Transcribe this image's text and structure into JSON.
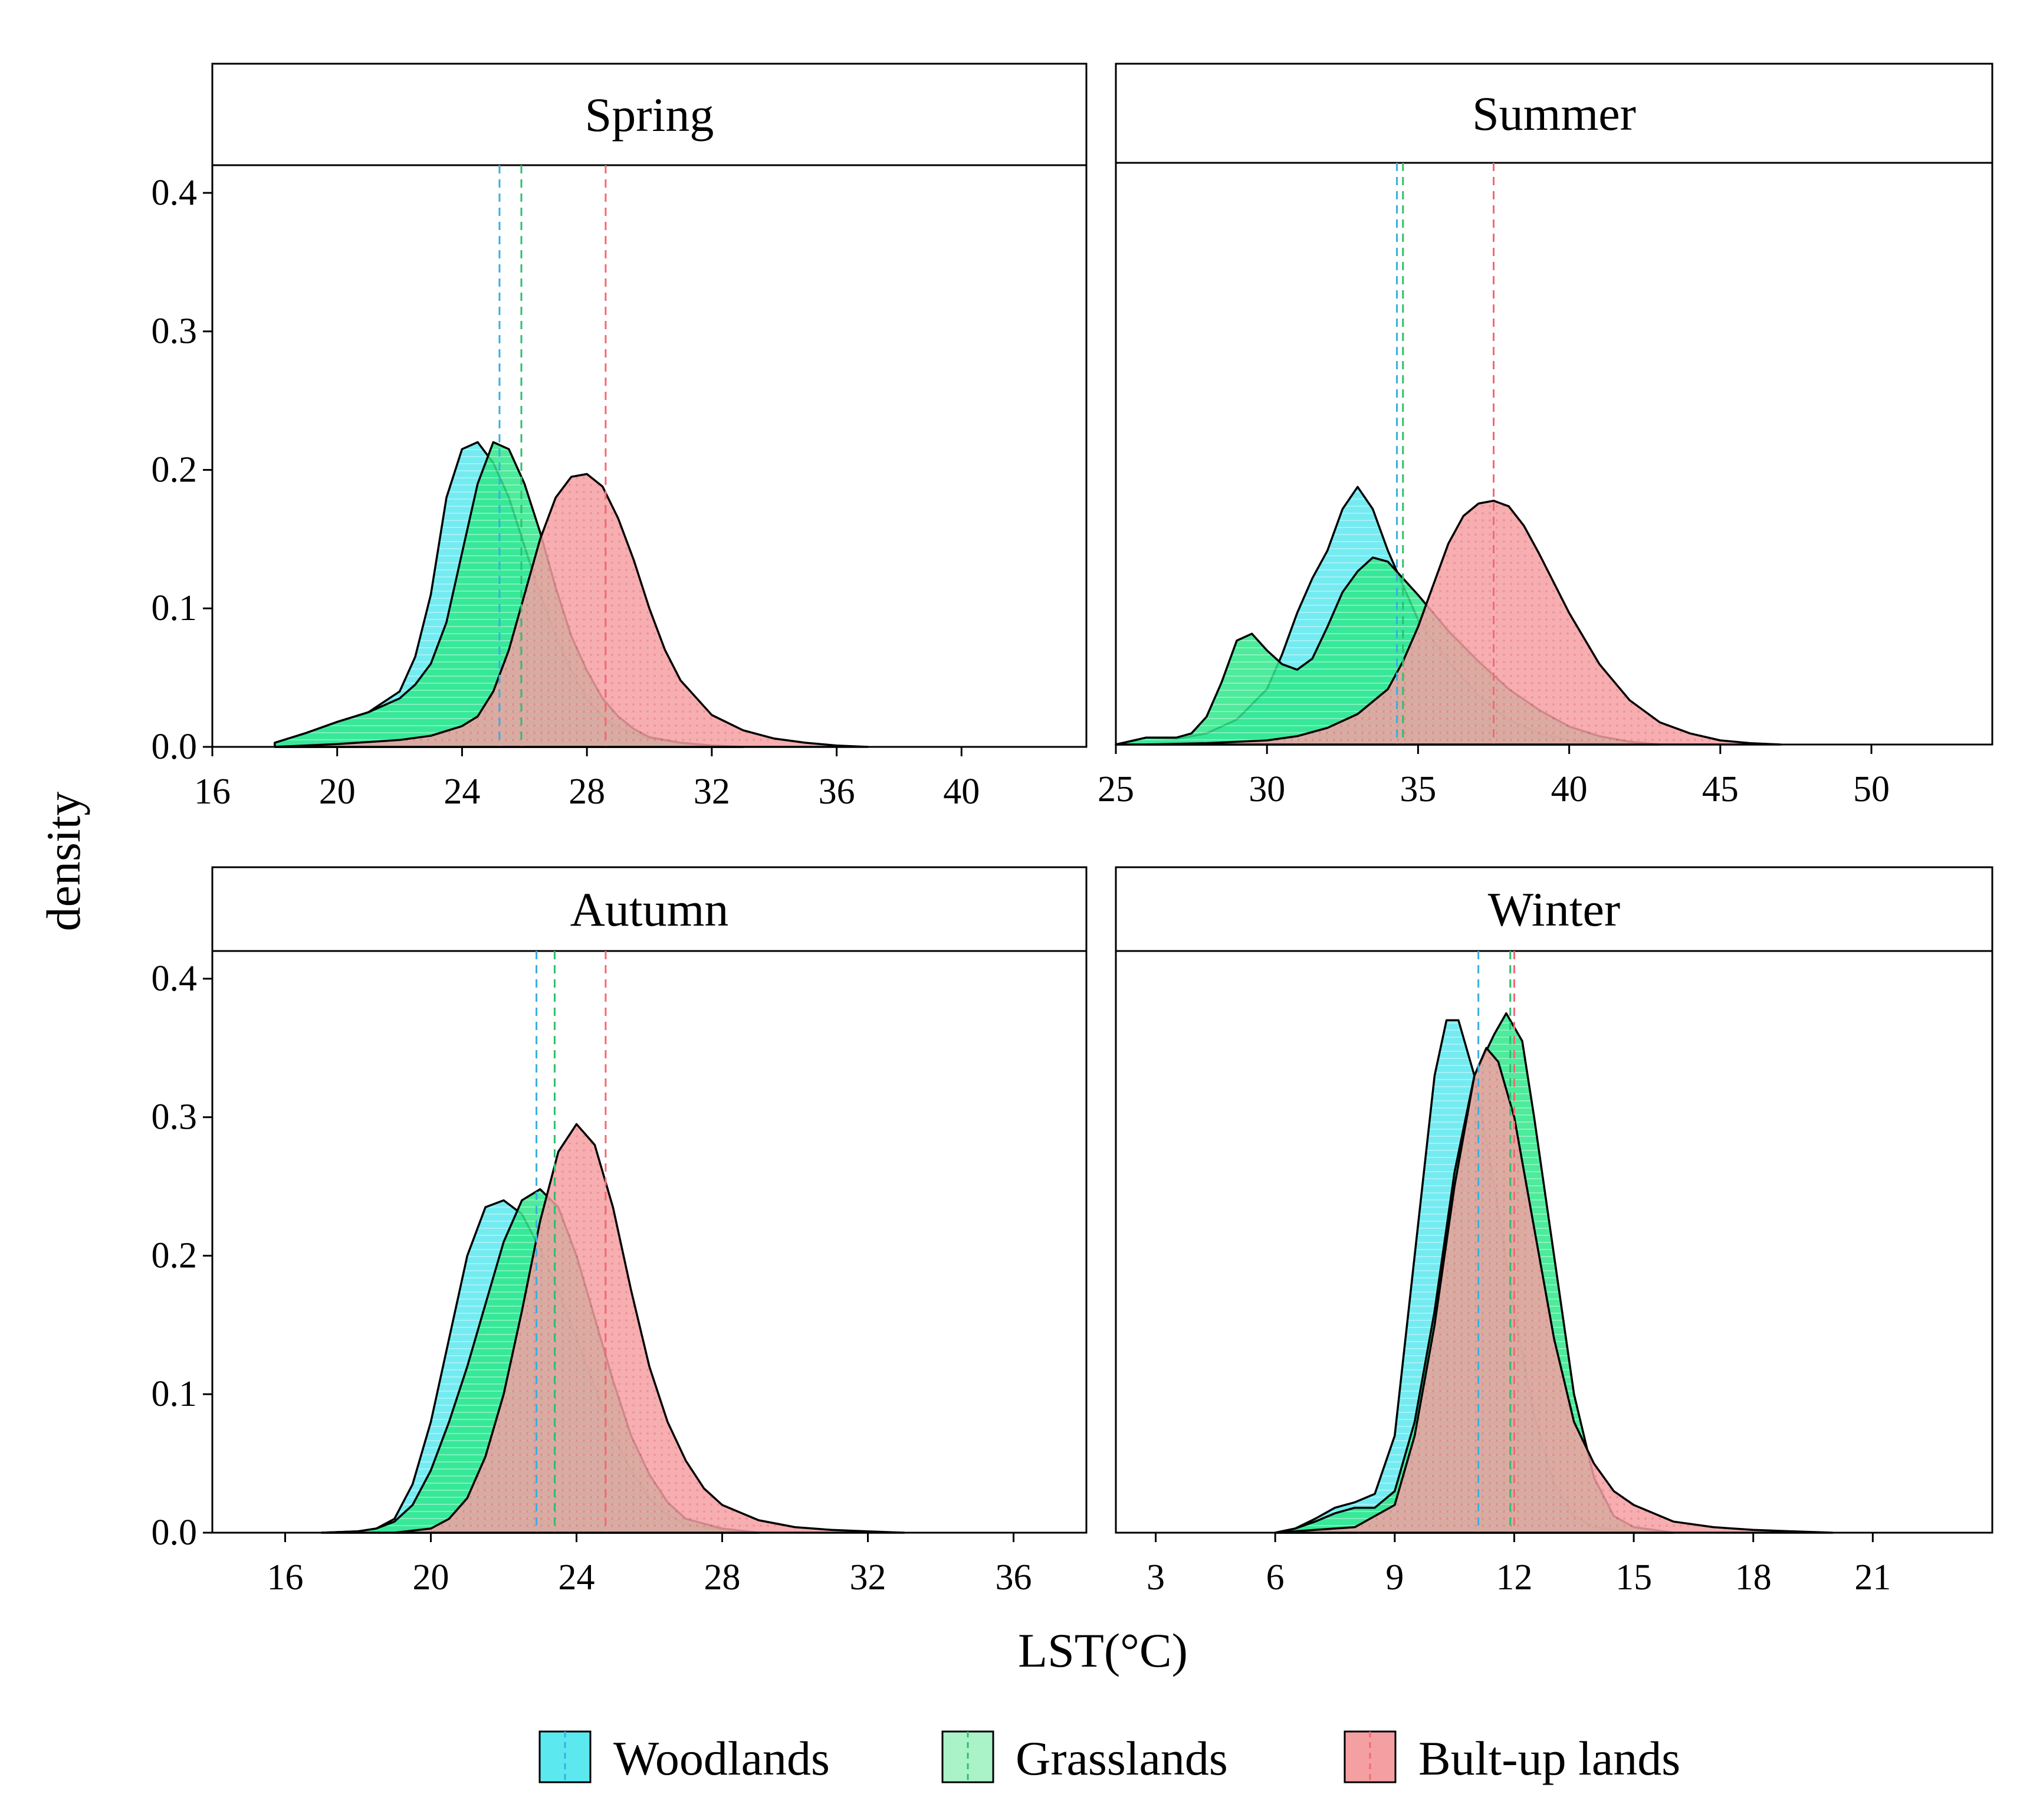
{
  "figure": {
    "ylabel": "density",
    "xlabel": "LST(°C)"
  },
  "legend": {
    "items": [
      {
        "label": "Woodlands",
        "color": "#5ce8ef"
      },
      {
        "label": "Grasslands",
        "color": "#2ee88a"
      },
      {
        "label": "Bult-up lands",
        "color": "#f4a0a3"
      }
    ]
  },
  "chart_data": [
    {
      "type": "density",
      "title": "Spring",
      "xlim": [
        16,
        44
      ],
      "ylim": [
        0,
        0.42
      ],
      "xticks": [
        16,
        20,
        24,
        28,
        32,
        36,
        40
      ],
      "yticks": [
        0.0,
        0.1,
        0.2,
        0.3,
        0.4
      ],
      "ytick_labels": [
        "0.0",
        "0.1",
        "0.2",
        "0.3",
        "0.4"
      ],
      "series": [
        {
          "name": "Woodlands",
          "mean": 25.2,
          "x": [
            18,
            19,
            20,
            21,
            22,
            22.5,
            23,
            23.5,
            24,
            24.5,
            25,
            25.5,
            26,
            26.5,
            27,
            27.5,
            28,
            28.5,
            29,
            30,
            31,
            32,
            33
          ],
          "y": [
            0.003,
            0.01,
            0.018,
            0.025,
            0.04,
            0.065,
            0.11,
            0.18,
            0.215,
            0.22,
            0.205,
            0.18,
            0.145,
            0.11,
            0.08,
            0.055,
            0.035,
            0.022,
            0.014,
            0.006,
            0.003,
            0.001,
            0
          ]
        },
        {
          "name": "Grasslands",
          "mean": 25.9,
          "x": [
            18,
            19,
            20,
            21,
            22,
            22.5,
            23,
            23.5,
            24,
            24.5,
            25,
            25.5,
            26,
            26.5,
            27,
            27.5,
            28,
            28.5,
            29,
            29.5,
            30,
            31,
            32,
            33
          ],
          "y": [
            0.003,
            0.01,
            0.018,
            0.025,
            0.035,
            0.045,
            0.06,
            0.09,
            0.14,
            0.19,
            0.22,
            0.215,
            0.19,
            0.155,
            0.115,
            0.08,
            0.055,
            0.035,
            0.022,
            0.013,
            0.007,
            0.003,
            0.001,
            0
          ]
        },
        {
          "name": "Bult-up lands",
          "mean": 28.6,
          "x": [
            18,
            20,
            22,
            23,
            24,
            24.5,
            25,
            25.5,
            26,
            26.5,
            27,
            27.5,
            28,
            28.5,
            29,
            29.5,
            30,
            30.5,
            31,
            32,
            33,
            34,
            35,
            36,
            37
          ],
          "y": [
            0,
            0.002,
            0.005,
            0.008,
            0.015,
            0.022,
            0.04,
            0.07,
            0.11,
            0.15,
            0.18,
            0.195,
            0.197,
            0.188,
            0.165,
            0.135,
            0.1,
            0.07,
            0.048,
            0.023,
            0.012,
            0.006,
            0.003,
            0.001,
            0
          ]
        }
      ]
    },
    {
      "type": "density",
      "title": "Summer",
      "xlim": [
        25,
        54
      ],
      "ylim": [
        0,
        0.42
      ],
      "xticks": [
        25,
        30,
        35,
        40,
        45,
        50
      ],
      "yticks": [],
      "ytick_labels": [],
      "series": [
        {
          "name": "Woodlands",
          "mean": 34.3,
          "x": [
            25,
            26,
            27,
            28,
            29,
            30,
            30.5,
            31,
            31.5,
            32,
            32.5,
            33,
            33.5,
            34,
            34.5,
            35,
            36,
            37,
            38,
            39,
            40,
            41,
            42
          ],
          "y": [
            0,
            0.005,
            0.004,
            0.008,
            0.018,
            0.04,
            0.065,
            0.095,
            0.12,
            0.14,
            0.17,
            0.186,
            0.17,
            0.14,
            0.115,
            0.09,
            0.06,
            0.035,
            0.018,
            0.008,
            0.003,
            0.001,
            0
          ]
        },
        {
          "name": "Grasslands",
          "mean": 34.5,
          "x": [
            25,
            26,
            27,
            27.5,
            28,
            28.5,
            29,
            29.5,
            30,
            30.5,
            31,
            31.5,
            32,
            32.5,
            33,
            33.5,
            34,
            34.5,
            35,
            36,
            37,
            38,
            39,
            40,
            41,
            42,
            43
          ],
          "y": [
            0,
            0.005,
            0.005,
            0.008,
            0.02,
            0.045,
            0.075,
            0.08,
            0.068,
            0.058,
            0.054,
            0.062,
            0.085,
            0.11,
            0.125,
            0.135,
            0.132,
            0.12,
            0.108,
            0.082,
            0.06,
            0.04,
            0.025,
            0.013,
            0.006,
            0.002,
            0
          ]
        },
        {
          "name": "Bult-up lands",
          "mean": 37.5,
          "x": [
            26,
            28,
            30,
            31,
            32,
            33,
            34,
            34.5,
            35,
            35.5,
            36,
            36.5,
            37,
            37.5,
            38,
            38.5,
            39,
            40,
            41,
            42,
            43,
            44,
            45,
            46,
            47
          ],
          "y": [
            0,
            0.001,
            0.003,
            0.006,
            0.012,
            0.022,
            0.04,
            0.06,
            0.085,
            0.115,
            0.145,
            0.165,
            0.174,
            0.176,
            0.172,
            0.158,
            0.138,
            0.095,
            0.058,
            0.032,
            0.016,
            0.008,
            0.003,
            0.001,
            0
          ]
        }
      ]
    },
    {
      "type": "density",
      "title": "Autumn",
      "xlim": [
        14,
        38
      ],
      "ylim": [
        0,
        0.42
      ],
      "xticks": [
        16,
        20,
        24,
        28,
        32,
        36
      ],
      "yticks": [
        0.0,
        0.1,
        0.2,
        0.3,
        0.4
      ],
      "ytick_labels": [
        "0.0",
        "0.1",
        "0.2",
        "0.3",
        "0.4"
      ],
      "series": [
        {
          "name": "Woodlands",
          "mean": 22.9,
          "x": [
            17,
            18,
            18.5,
            19,
            19.5,
            20,
            20.5,
            21,
            21.5,
            22,
            22.5,
            23,
            23.5,
            24,
            24.5,
            25,
            25.5,
            26,
            26.5,
            27,
            28,
            29
          ],
          "y": [
            0,
            0.001,
            0.003,
            0.01,
            0.035,
            0.08,
            0.14,
            0.2,
            0.235,
            0.24,
            0.23,
            0.205,
            0.175,
            0.14,
            0.105,
            0.07,
            0.045,
            0.025,
            0.013,
            0.006,
            0.002,
            0
          ]
        },
        {
          "name": "Grasslands",
          "mean": 23.4,
          "x": [
            17,
            18,
            18.5,
            19,
            19.5,
            20,
            20.5,
            21,
            21.5,
            22,
            22.5,
            23,
            23.5,
            24,
            24.5,
            25,
            25.5,
            26,
            26.5,
            27,
            28,
            29
          ],
          "y": [
            0,
            0.001,
            0.003,
            0.008,
            0.02,
            0.045,
            0.08,
            0.12,
            0.165,
            0.21,
            0.24,
            0.248,
            0.235,
            0.2,
            0.155,
            0.11,
            0.07,
            0.042,
            0.022,
            0.01,
            0.003,
            0
          ]
        },
        {
          "name": "Bult-up lands",
          "mean": 24.8,
          "x": [
            19,
            20,
            20.5,
            21,
            21.5,
            22,
            22.5,
            23,
            23.5,
            24,
            24.5,
            25,
            25.5,
            26,
            26.5,
            27,
            27.5,
            28,
            29,
            30,
            31,
            32,
            33
          ],
          "y": [
            0,
            0.003,
            0.01,
            0.025,
            0.055,
            0.1,
            0.16,
            0.225,
            0.275,
            0.295,
            0.28,
            0.235,
            0.175,
            0.12,
            0.08,
            0.052,
            0.032,
            0.02,
            0.009,
            0.004,
            0.002,
            0.001,
            0
          ]
        }
      ]
    },
    {
      "type": "density",
      "title": "Winter",
      "xlim": [
        2,
        24
      ],
      "ylim": [
        0,
        0.42
      ],
      "xticks": [
        3,
        6,
        9,
        12,
        15,
        18,
        21
      ],
      "yticks": [],
      "ytick_labels": [],
      "series": [
        {
          "name": "Woodlands",
          "mean": 11.1,
          "x": [
            6,
            6.5,
            7,
            7.5,
            8,
            8.5,
            9,
            9.5,
            10,
            10.3,
            10.6,
            11,
            11.5,
            12,
            12.5,
            13,
            13.5,
            14,
            14.5,
            15,
            16
          ],
          "y": [
            0,
            0.003,
            0.01,
            0.018,
            0.022,
            0.028,
            0.07,
            0.2,
            0.33,
            0.37,
            0.37,
            0.33,
            0.25,
            0.16,
            0.085,
            0.035,
            0.012,
            0.004,
            0.002,
            0.001,
            0
          ]
        },
        {
          "name": "Grasslands",
          "mean": 11.9,
          "x": [
            6,
            6.5,
            7,
            7.5,
            8,
            8.5,
            9,
            9.5,
            10,
            10.5,
            11,
            11.5,
            11.8,
            12.2,
            12.5,
            13,
            13.5,
            14,
            14.5,
            15,
            16
          ],
          "y": [
            0,
            0.003,
            0.008,
            0.014,
            0.018,
            0.018,
            0.03,
            0.08,
            0.16,
            0.26,
            0.33,
            0.36,
            0.375,
            0.355,
            0.3,
            0.2,
            0.1,
            0.04,
            0.012,
            0.004,
            0
          ]
        },
        {
          "name": "Bult-up lands",
          "mean": 12.0,
          "x": [
            6,
            7,
            8,
            9,
            9.5,
            10,
            10.5,
            11,
            11.3,
            11.6,
            12,
            12.5,
            13,
            13.5,
            14,
            14.5,
            15,
            16,
            17,
            18,
            19,
            20
          ],
          "y": [
            0,
            0.002,
            0.004,
            0.02,
            0.07,
            0.15,
            0.25,
            0.33,
            0.35,
            0.34,
            0.3,
            0.22,
            0.14,
            0.08,
            0.05,
            0.03,
            0.02,
            0.008,
            0.004,
            0.002,
            0.001,
            0
          ]
        }
      ]
    }
  ]
}
